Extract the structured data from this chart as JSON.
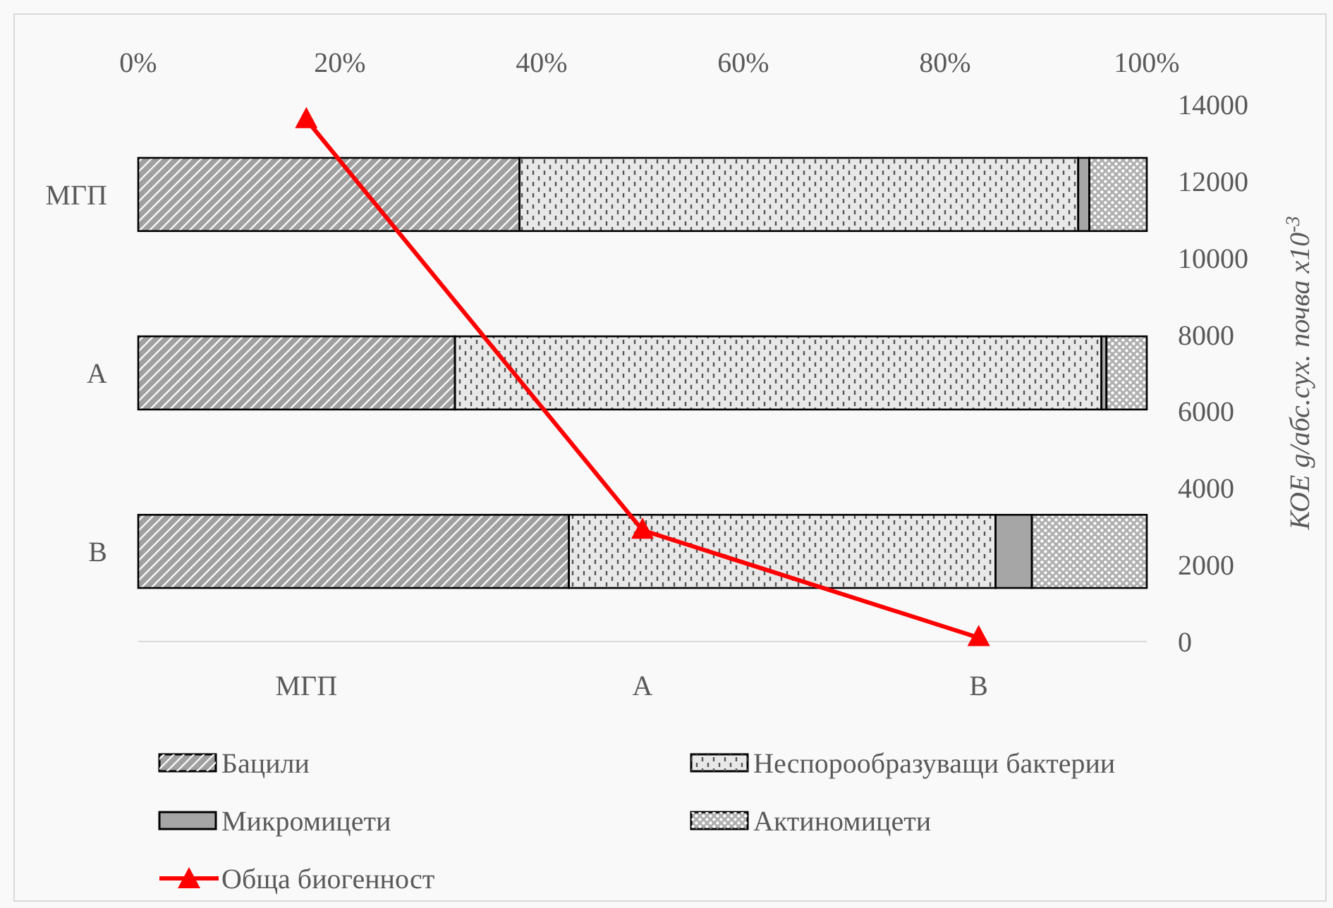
{
  "chart_data": [
    {
      "type": "bar",
      "orientation": "horizontal",
      "stacked": true,
      "categories": [
        "МГП",
        "А",
        "В"
      ],
      "xlim": [
        0,
        100
      ],
      "xticks": [
        {
          "value": 0,
          "label": "0%"
        },
        {
          "value": 20,
          "label": "20%"
        },
        {
          "value": 40,
          "label": "40%"
        },
        {
          "value": 60,
          "label": "60%"
        },
        {
          "value": 80,
          "label": "80%"
        },
        {
          "value": 100,
          "label": "100%"
        }
      ],
      "legend": "bottom",
      "series": [
        {
          "name": "Бацили",
          "color": "#a0a0a0",
          "values": [
            37.8,
            31.4,
            42.7
          ]
        },
        {
          "name": "Неспорообразуващи бактерии",
          "color": "#e8e8e8",
          "values": [
            55.4,
            64.1,
            42.3
          ]
        },
        {
          "name": "Микромицети",
          "color": "#a6a6a6",
          "values": [
            1.1,
            0.5,
            3.6
          ]
        },
        {
          "name": "Актиномицети",
          "color": "#b0b0b0",
          "values": [
            5.7,
            4.0,
            11.4
          ]
        }
      ]
    },
    {
      "type": "line",
      "categories": [
        "МГП",
        "А",
        "В"
      ],
      "ylim": [
        0,
        14000
      ],
      "yticks": [
        0,
        2000,
        4000,
        6000,
        8000,
        10000,
        12000,
        14000
      ],
      "ylabel": "КОЕ g/абс.сух. почва x10$^{-3}$",
      "legend": "bottom",
      "marker": "triangle",
      "series": [
        {
          "name": "Обща биогенност",
          "color": "#ff0000",
          "values": [
            13600,
            2900,
            100
          ]
        }
      ]
    }
  ]
}
